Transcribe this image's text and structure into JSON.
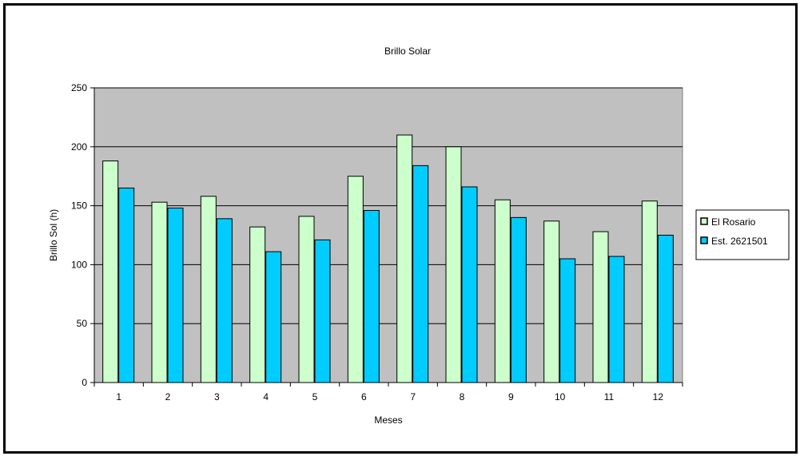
{
  "chart_data": {
    "type": "bar",
    "title": "Brillo Solar",
    "xlabel": "Meses",
    "ylabel": "Brillo Sol (h)",
    "categories": [
      "1",
      "2",
      "3",
      "4",
      "5",
      "6",
      "7",
      "8",
      "9",
      "10",
      "11",
      "12"
    ],
    "ylim": [
      0,
      250
    ],
    "yticks": [
      0,
      50,
      100,
      150,
      200,
      250
    ],
    "grid": true,
    "legend_position": "right",
    "plot_background": "#C0C0C0",
    "series": [
      {
        "name": "El Rosario",
        "color": "#CCFFCC",
        "values": [
          188,
          153,
          158,
          132,
          141,
          175,
          210,
          200,
          155,
          137,
          128,
          154
        ]
      },
      {
        "name": "Est. 2621501",
        "color": "#00CCFF",
        "values": [
          165,
          148,
          139,
          111,
          121,
          146,
          184,
          166,
          140,
          105,
          107,
          125
        ]
      }
    ]
  }
}
